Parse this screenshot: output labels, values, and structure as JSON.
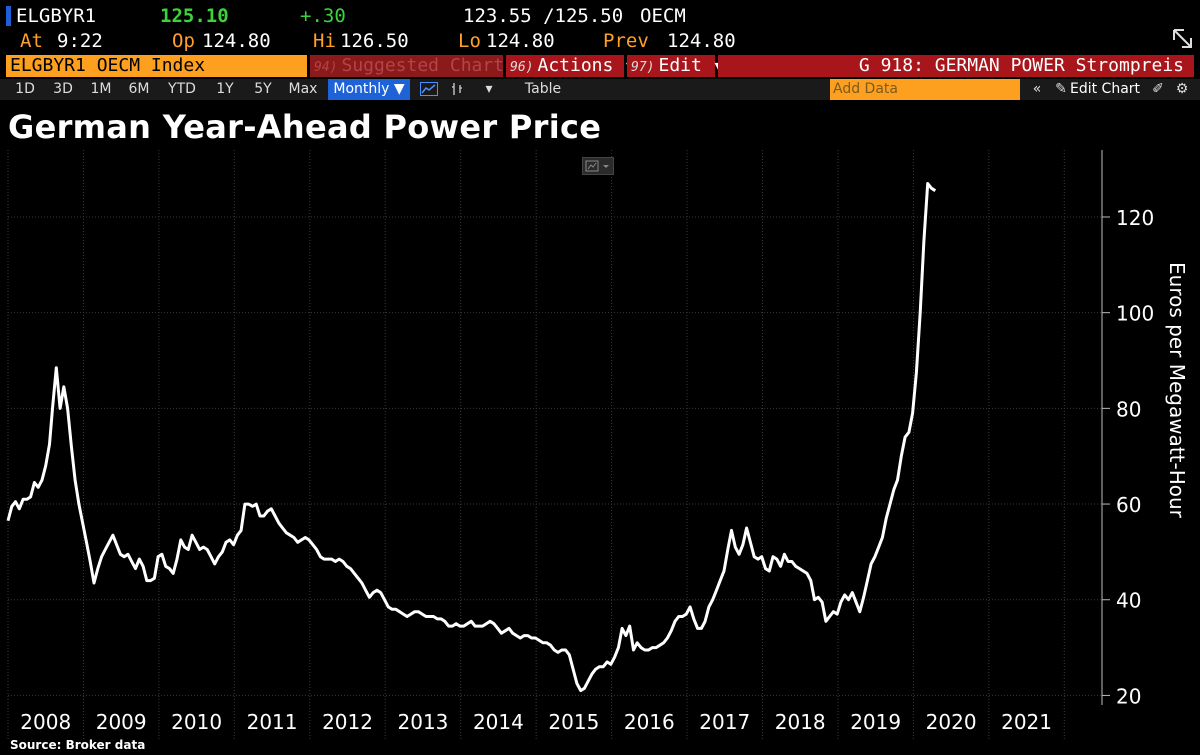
{
  "quote": {
    "ticker": "ELGBYR1",
    "last": "125.10",
    "change": "+.30",
    "bid_ask": "123.55 /125.50",
    "source": "OECM",
    "at_label": "At",
    "at_value": "9:22",
    "open_label": "Op",
    "open_value": "124.80",
    "high_label": "Hi",
    "high_value": "126.50",
    "low_label": "Lo",
    "low_value": "124.80",
    "prev_label": "Prev",
    "prev_value": "124.80"
  },
  "command_bar": {
    "index_label": "ELGBYR1 OECM Index",
    "suggested_num": "94)",
    "suggested_label": "Suggested Charts",
    "actions_num": "96)",
    "actions_label": "Actions ▾",
    "edit_num": "97)",
    "edit_label": "Edit ▾",
    "function_title": "G 918: GERMAN POWER Strompreis"
  },
  "toolbar": {
    "periods": [
      "1D",
      "3D",
      "1M",
      "6M",
      "YTD",
      "1Y",
      "5Y",
      "Max"
    ],
    "frequency": "Monthly ▼",
    "table_label": "Table",
    "add_data_placeholder": "Add Data",
    "edit_chart_label": "Edit Chart"
  },
  "colors": {
    "background": "#000000",
    "accent_orange": "#fda01f",
    "command_red": "#a8161c",
    "toolbar_blue": "#1e62d8",
    "line": "#ffffff"
  },
  "chart_data": {
    "type": "line",
    "title": "German Year-Ahead Power Price",
    "ylabel": "Euros per Megawatt-Hour",
    "xlabel": "",
    "ylim": [
      18,
      134
    ],
    "yticks": [
      20,
      40,
      60,
      80,
      100,
      120
    ],
    "xlim": [
      2007.5,
      2022.0
    ],
    "xtick_labels": [
      "2008",
      "2009",
      "2010",
      "2011",
      "2012",
      "2013",
      "2014",
      "2015",
      "2016",
      "2017",
      "2018",
      "2019",
      "2020",
      "2021"
    ],
    "grid": true,
    "source": "Source: Broker data",
    "series": [
      {
        "name": "",
        "points": [
          [
            2007.5,
            56.5
          ],
          [
            2007.55,
            59.5
          ],
          [
            2007.6,
            60.5
          ],
          [
            2007.65,
            59.0
          ],
          [
            2007.7,
            61.0
          ],
          [
            2007.75,
            61.0
          ],
          [
            2007.8,
            61.5
          ],
          [
            2007.85,
            64.5
          ],
          [
            2007.9,
            63.5
          ],
          [
            2007.95,
            65.0
          ],
          [
            2008.0,
            68.0
          ],
          [
            2008.05,
            72.5
          ],
          [
            2008.09,
            80.0
          ],
          [
            2008.14,
            88.5
          ],
          [
            2008.19,
            80.0
          ],
          [
            2008.24,
            84.5
          ],
          [
            2008.29,
            80.0
          ],
          [
            2008.34,
            72.0
          ],
          [
            2008.39,
            65.0
          ],
          [
            2008.44,
            60.0
          ],
          [
            2008.49,
            56.0
          ],
          [
            2008.54,
            52.0
          ],
          [
            2008.59,
            48.0
          ],
          [
            2008.64,
            43.5
          ],
          [
            2008.69,
            46.5
          ],
          [
            2008.74,
            49.0
          ],
          [
            2008.79,
            50.5
          ],
          [
            2008.84,
            52.0
          ],
          [
            2008.89,
            53.5
          ],
          [
            2008.94,
            51.5
          ],
          [
            2008.99,
            49.5
          ],
          [
            2009.04,
            49.0
          ],
          [
            2009.09,
            49.5
          ],
          [
            2009.14,
            48.0
          ],
          [
            2009.19,
            46.5
          ],
          [
            2009.24,
            48.5
          ],
          [
            2009.29,
            47.0
          ],
          [
            2009.34,
            44.0
          ],
          [
            2009.39,
            44.0
          ],
          [
            2009.44,
            44.5
          ],
          [
            2009.49,
            49.0
          ],
          [
            2009.54,
            49.5
          ],
          [
            2009.59,
            47.0
          ],
          [
            2009.64,
            46.5
          ],
          [
            2009.69,
            45.5
          ],
          [
            2009.74,
            48.5
          ],
          [
            2009.79,
            52.5
          ],
          [
            2009.84,
            51.0
          ],
          [
            2009.89,
            50.5
          ],
          [
            2009.94,
            53.5
          ],
          [
            2009.99,
            52.0
          ],
          [
            2010.04,
            50.5
          ],
          [
            2010.09,
            51.0
          ],
          [
            2010.14,
            50.5
          ],
          [
            2010.19,
            49.0
          ],
          [
            2010.24,
            47.5
          ],
          [
            2010.29,
            49.0
          ],
          [
            2010.34,
            50.0
          ],
          [
            2010.39,
            52.0
          ],
          [
            2010.44,
            52.5
          ],
          [
            2010.49,
            51.5
          ],
          [
            2010.54,
            53.5
          ],
          [
            2010.59,
            54.5
          ],
          [
            2010.64,
            60.0
          ],
          [
            2010.69,
            60.0
          ],
          [
            2010.74,
            59.5
          ],
          [
            2010.79,
            60.0
          ],
          [
            2010.84,
            57.5
          ],
          [
            2010.89,
            57.5
          ],
          [
            2010.94,
            58.5
          ],
          [
            2010.99,
            59.0
          ],
          [
            2011.04,
            57.5
          ],
          [
            2011.09,
            56.0
          ],
          [
            2011.14,
            55.0
          ],
          [
            2011.19,
            54.0
          ],
          [
            2011.24,
            53.5
          ],
          [
            2011.29,
            53.0
          ],
          [
            2011.34,
            52.0
          ],
          [
            2011.39,
            52.5
          ],
          [
            2011.44,
            53.0
          ],
          [
            2011.49,
            52.5
          ],
          [
            2011.54,
            51.5
          ],
          [
            2011.59,
            50.5
          ],
          [
            2011.64,
            49.0
          ],
          [
            2011.69,
            48.5
          ],
          [
            2011.74,
            48.5
          ],
          [
            2011.79,
            48.5
          ],
          [
            2011.84,
            48.0
          ],
          [
            2011.89,
            48.5
          ],
          [
            2011.94,
            48.0
          ],
          [
            2011.99,
            47.0
          ],
          [
            2012.04,
            46.5
          ],
          [
            2012.09,
            45.5
          ],
          [
            2012.14,
            44.5
          ],
          [
            2012.19,
            43.5
          ],
          [
            2012.24,
            42.0
          ],
          [
            2012.29,
            40.5
          ],
          [
            2012.34,
            41.5
          ],
          [
            2012.39,
            42.0
          ],
          [
            2012.44,
            41.5
          ],
          [
            2012.49,
            40.0
          ],
          [
            2012.54,
            38.5
          ],
          [
            2012.59,
            38.0
          ],
          [
            2012.64,
            38.0
          ],
          [
            2012.69,
            37.5
          ],
          [
            2012.74,
            37.0
          ],
          [
            2012.79,
            36.5
          ],
          [
            2012.84,
            37.0
          ],
          [
            2012.89,
            37.5
          ],
          [
            2012.94,
            37.5
          ],
          [
            2012.99,
            37.0
          ],
          [
            2013.04,
            36.5
          ],
          [
            2013.09,
            36.5
          ],
          [
            2013.14,
            36.5
          ],
          [
            2013.19,
            36.0
          ],
          [
            2013.24,
            36.0
          ],
          [
            2013.29,
            35.5
          ],
          [
            2013.34,
            34.5
          ],
          [
            2013.39,
            34.5
          ],
          [
            2013.44,
            35.0
          ],
          [
            2013.49,
            34.5
          ],
          [
            2013.54,
            34.5
          ],
          [
            2013.59,
            35.0
          ],
          [
            2013.64,
            35.5
          ],
          [
            2013.69,
            34.5
          ],
          [
            2013.74,
            34.5
          ],
          [
            2013.79,
            34.5
          ],
          [
            2013.84,
            35.0
          ],
          [
            2013.89,
            35.5
          ],
          [
            2013.94,
            35.0
          ],
          [
            2013.99,
            34.0
          ],
          [
            2014.04,
            33.0
          ],
          [
            2014.09,
            33.5
          ],
          [
            2014.14,
            34.0
          ],
          [
            2014.19,
            33.0
          ],
          [
            2014.24,
            32.5
          ],
          [
            2014.29,
            32.0
          ],
          [
            2014.34,
            32.5
          ],
          [
            2014.39,
            32.5
          ],
          [
            2014.44,
            32.0
          ],
          [
            2014.49,
            32.0
          ],
          [
            2014.54,
            31.5
          ],
          [
            2014.59,
            31.0
          ],
          [
            2014.64,
            31.0
          ],
          [
            2014.69,
            30.5
          ],
          [
            2014.74,
            29.5
          ],
          [
            2014.79,
            29.0
          ],
          [
            2014.84,
            29.5
          ],
          [
            2014.89,
            29.5
          ],
          [
            2014.94,
            28.5
          ],
          [
            2014.99,
            25.5
          ],
          [
            2015.04,
            22.5
          ],
          [
            2015.09,
            21.0
          ],
          [
            2015.14,
            21.5
          ],
          [
            2015.19,
            23.0
          ],
          [
            2015.24,
            24.5
          ],
          [
            2015.29,
            25.5
          ],
          [
            2015.34,
            26.0
          ],
          [
            2015.39,
            26.0
          ],
          [
            2015.44,
            27.0
          ],
          [
            2015.49,
            26.5
          ],
          [
            2015.54,
            28.0
          ],
          [
            2015.59,
            30.0
          ],
          [
            2015.64,
            34.0
          ],
          [
            2015.69,
            32.5
          ],
          [
            2015.74,
            34.5
          ],
          [
            2015.79,
            29.5
          ],
          [
            2015.84,
            31.0
          ],
          [
            2015.89,
            30.0
          ],
          [
            2015.94,
            29.5
          ],
          [
            2015.99,
            29.5
          ],
          [
            2016.04,
            30.0
          ],
          [
            2016.09,
            30.0
          ],
          [
            2016.14,
            30.5
          ],
          [
            2016.19,
            31.0
          ],
          [
            2016.24,
            32.0
          ],
          [
            2016.29,
            33.5
          ],
          [
            2016.34,
            35.5
          ],
          [
            2016.39,
            36.5
          ],
          [
            2016.44,
            36.5
          ],
          [
            2016.49,
            37.0
          ],
          [
            2016.54,
            38.5
          ],
          [
            2016.59,
            36.0
          ],
          [
            2016.64,
            34.0
          ],
          [
            2016.69,
            34.0
          ],
          [
            2016.74,
            35.5
          ],
          [
            2016.79,
            38.5
          ],
          [
            2016.84,
            40.0
          ],
          [
            2016.89,
            42.0
          ],
          [
            2016.94,
            44.0
          ],
          [
            2016.99,
            46.0
          ],
          [
            2017.04,
            50.5
          ],
          [
            2017.09,
            54.5
          ],
          [
            2017.14,
            51.0
          ],
          [
            2017.19,
            49.5
          ],
          [
            2017.24,
            51.5
          ],
          [
            2017.29,
            55.0
          ],
          [
            2017.34,
            52.0
          ],
          [
            2017.39,
            49.0
          ],
          [
            2017.44,
            48.5
          ],
          [
            2017.49,
            49.0
          ],
          [
            2017.54,
            46.5
          ],
          [
            2017.59,
            46.0
          ],
          [
            2017.64,
            49.0
          ],
          [
            2017.69,
            48.5
          ],
          [
            2017.74,
            47.0
          ],
          [
            2017.79,
            49.5
          ],
          [
            2017.84,
            48.0
          ],
          [
            2017.89,
            48.0
          ],
          [
            2017.94,
            47.0
          ],
          [
            2017.99,
            46.5
          ],
          [
            2018.04,
            46.0
          ],
          [
            2018.09,
            45.5
          ],
          [
            2018.14,
            44.0
          ],
          [
            2018.19,
            40.0
          ],
          [
            2018.24,
            40.5
          ],
          [
            2018.29,
            39.5
          ],
          [
            2018.34,
            35.5
          ],
          [
            2018.39,
            36.5
          ],
          [
            2018.44,
            37.5
          ],
          [
            2018.49,
            37.0
          ],
          [
            2018.54,
            39.5
          ],
          [
            2018.59,
            41.0
          ],
          [
            2018.64,
            40.0
          ],
          [
            2018.69,
            41.5
          ],
          [
            2018.74,
            39.5
          ],
          [
            2018.79,
            37.5
          ],
          [
            2018.84,
            40.5
          ],
          [
            2018.89,
            44.0
          ],
          [
            2018.94,
            47.5
          ],
          [
            2018.99,
            49.0
          ],
          [
            2019.04,
            51.0
          ],
          [
            2019.09,
            53.0
          ],
          [
            2019.14,
            57.0
          ],
          [
            2019.19,
            60.0
          ],
          [
            2019.24,
            63.0
          ],
          [
            2019.29,
            65.0
          ],
          [
            2019.34,
            70.0
          ],
          [
            2019.39,
            74.0
          ],
          [
            2019.44,
            75.0
          ],
          [
            2019.49,
            79.0
          ],
          [
            2019.54,
            87.5
          ],
          [
            2019.59,
            100.0
          ],
          [
            2019.64,
            115.0
          ],
          [
            2019.69,
            127.0
          ],
          [
            2019.74,
            126.0
          ],
          [
            2019.79,
            125.5
          ]
        ]
      }
    ]
  }
}
